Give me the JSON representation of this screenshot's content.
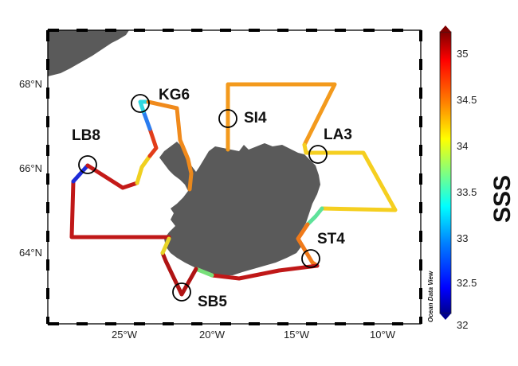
{
  "map": {
    "lon_ticks": [
      "25°W",
      "20°W",
      "15°W",
      "10°W"
    ],
    "lat_ticks": [
      "68°N",
      "66°N",
      "64°N"
    ],
    "credit": "Ocean Data View"
  },
  "stations": [
    {
      "id": "LB8",
      "lon": -26.6,
      "lat": 66.05
    },
    {
      "id": "KG6",
      "lon": -23.6,
      "lat": 67.6
    },
    {
      "id": "SI4",
      "lon": -18.9,
      "lat": 67.2
    },
    {
      "id": "LA3",
      "lon": -13.4,
      "lat": 66.35
    },
    {
      "id": "ST4",
      "lon": -13.9,
      "lat": 63.85
    },
    {
      "id": "SB5",
      "lon": -21.2,
      "lat": 63.05
    }
  ],
  "colorbar": {
    "title": "SSS",
    "min": 32,
    "max": 35.3,
    "ticks": [
      "35",
      "34.5",
      "34",
      "33.5",
      "33",
      "32.5",
      "32"
    ],
    "colors": [
      "#00008f",
      "#0000ff",
      "#0080ff",
      "#00ffff",
      "#80ff80",
      "#ffff00",
      "#ff8000",
      "#ff0000",
      "#800000"
    ]
  },
  "colors": {
    "land": "#5a5a5a",
    "frame": "#000000",
    "background": "#ffffff"
  }
}
